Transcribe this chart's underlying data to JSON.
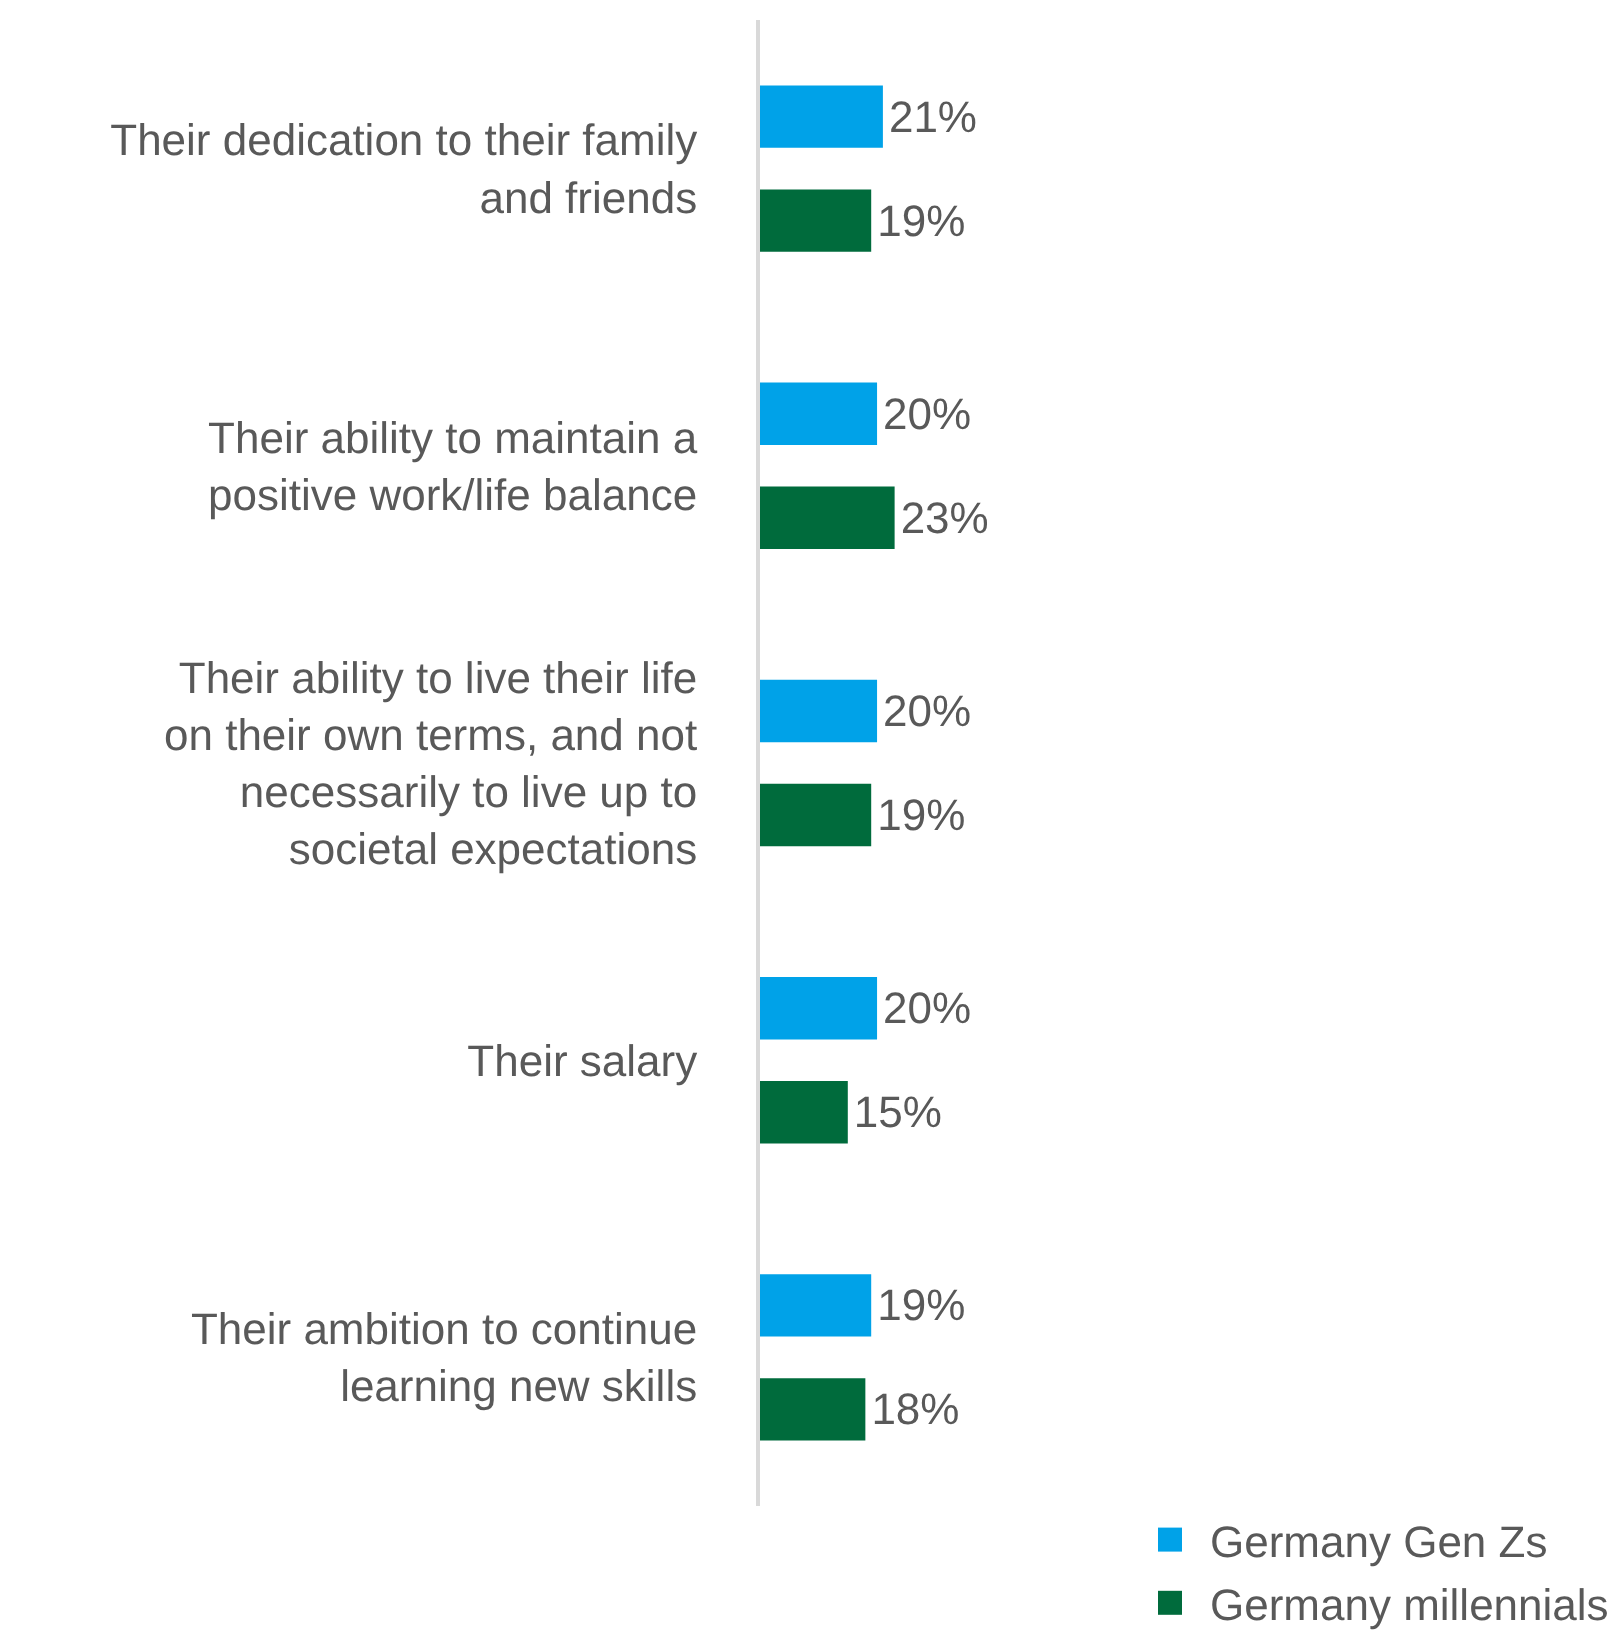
{
  "chart_data": {
    "type": "bar",
    "orientation": "horizontal",
    "categories": [
      "Their dedication to their family and friends",
      "Their ability to maintain a positive work/life balance",
      "Their ability to live their life on their own terms, and not necessarily to live up to societal expectations",
      "Their salary",
      "Their ambition to continue learning new skills"
    ],
    "series": [
      {
        "name": "Germany Gen Zs",
        "color": "#00a2e8",
        "values": [
          21,
          20,
          20,
          20,
          19
        ],
        "value_labels": [
          "21%",
          "20%",
          "20%",
          "20%",
          "19%"
        ]
      },
      {
        "name": "Germany millennials",
        "color": "#006b3c",
        "values": [
          19,
          23,
          19,
          15,
          18
        ],
        "value_labels": [
          "19%",
          "23%",
          "19%",
          "15%",
          "18%"
        ]
      }
    ],
    "legend": "bottom"
  }
}
